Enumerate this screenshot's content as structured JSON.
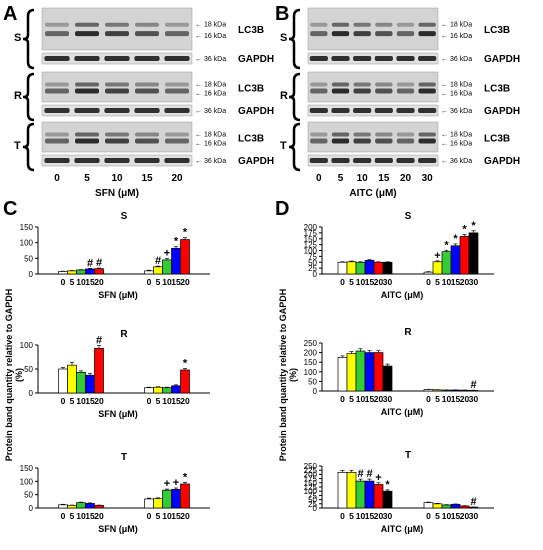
{
  "panels": {
    "A": "A",
    "B": "B",
    "C": "C",
    "D": "D"
  },
  "blot_A": {
    "groups": [
      "S",
      "R",
      "T"
    ],
    "lanes": [
      "0",
      "5",
      "10",
      "15",
      "20"
    ],
    "axis_label": "SFN  (μM)"
  },
  "blot_B": {
    "groups": [
      "S",
      "R",
      "T"
    ],
    "lanes": [
      "0",
      "5",
      "10",
      "15",
      "20",
      "30"
    ],
    "axis_label": "AITC  (μM)"
  },
  "blot_labels": {
    "kda18": "← 18 kDa",
    "kda16": "← 16 kDa",
    "kda36": "← 36 kDa",
    "lc3b": "LC3B",
    "gapdh": "GAPDH"
  },
  "y_axis_label_line1": "Protein band quantity relative to GAPDH",
  "y_axis_label_line2": "(%)",
  "y_axis_label_D_line1": "Protein band quantity relative to GAPDH",
  "colors": {
    "c0": "#ffffff",
    "c5": "#ffff00",
    "c10": "#33cc33",
    "c15": "#0000ff",
    "c20": "#ff0000",
    "c30": "#000000"
  },
  "chart_data": [
    {
      "type": "bar",
      "panel": "C",
      "title": "S",
      "xlabel": "SFN (μM)",
      "categories": [
        "0",
        "5",
        "10",
        "15",
        "20"
      ],
      "ylim": [
        0,
        150
      ],
      "yticks": [
        0,
        50,
        100,
        150
      ],
      "series": [
        {
          "values": [
            8,
            10,
            13,
            16,
            17
          ],
          "errors": [
            1,
            1,
            1,
            2,
            2
          ],
          "marks": [
            "",
            "",
            "",
            "#",
            "#"
          ]
        },
        {
          "values": [
            10,
            23,
            45,
            82,
            110
          ],
          "errors": [
            2,
            2,
            4,
            5,
            6
          ],
          "marks": [
            "",
            "#",
            "+",
            "*",
            "*"
          ]
        }
      ]
    },
    {
      "type": "bar",
      "panel": "C",
      "title": "R",
      "xlabel": "SFN (μM)",
      "categories": [
        "0",
        "5",
        "10",
        "15",
        "20"
      ],
      "ylim": [
        0,
        100
      ],
      "yticks": [
        0,
        50,
        100
      ],
      "series": [
        {
          "values": [
            50,
            58,
            43,
            37,
            93
          ],
          "errors": [
            3,
            6,
            3,
            4,
            6
          ],
          "marks": [
            "",
            "",
            "",
            "",
            "#"
          ]
        },
        {
          "values": [
            11,
            12,
            11,
            15,
            48
          ],
          "errors": [
            1,
            1,
            1,
            2,
            3
          ],
          "marks": [
            "",
            "",
            "",
            "",
            "*"
          ]
        }
      ]
    },
    {
      "type": "bar",
      "panel": "C",
      "title": "T",
      "xlabel": "SFN (μM)",
      "categories": [
        "0",
        "5",
        "10",
        "15",
        "20"
      ],
      "ylim": [
        0,
        150
      ],
      "yticks": [
        0,
        50,
        100,
        150
      ],
      "series": [
        {
          "values": [
            12,
            10,
            20,
            17,
            10
          ],
          "errors": [
            2,
            1,
            2,
            2,
            1
          ],
          "marks": [
            "",
            "",
            "",
            "",
            ""
          ]
        },
        {
          "values": [
            34,
            35,
            67,
            70,
            90
          ],
          "errors": [
            3,
            3,
            4,
            5,
            6
          ],
          "marks": [
            "",
            "",
            "+",
            "+",
            "*"
          ]
        }
      ]
    },
    {
      "type": "bar",
      "panel": "D",
      "title": "S",
      "xlabel": "AITC (μM)",
      "categories": [
        "0",
        "5",
        "10",
        "15",
        "20",
        "30"
      ],
      "ylim": [
        0,
        200
      ],
      "yticks": [
        0,
        25,
        50,
        75,
        100,
        125,
        150,
        175,
        200
      ],
      "series": [
        {
          "values": [
            50,
            52,
            50,
            58,
            50,
            50
          ],
          "errors": [
            2,
            3,
            2,
            3,
            2,
            2
          ],
          "marks": [
            "",
            "",
            "",
            "",
            "",
            ""
          ]
        },
        {
          "values": [
            8,
            52,
            95,
            120,
            160,
            175
          ],
          "errors": [
            2,
            4,
            6,
            8,
            8,
            9
          ],
          "marks": [
            "",
            "+",
            "*",
            "*",
            "*",
            "*"
          ]
        }
      ]
    },
    {
      "type": "bar",
      "panel": "D",
      "title": "R",
      "xlabel": "AITC (μM)",
      "categories": [
        "0",
        "5",
        "10",
        "15",
        "20",
        "30"
      ],
      "ylim": [
        0,
        250
      ],
      "yticks": [
        0,
        50,
        100,
        150,
        200,
        250
      ],
      "series": [
        {
          "values": [
            175,
            195,
            208,
            200,
            200,
            130
          ],
          "errors": [
            8,
            10,
            12,
            10,
            10,
            10
          ],
          "marks": [
            "",
            "",
            "",
            "",
            "",
            ""
          ]
        },
        {
          "values": [
            8,
            6,
            5,
            5,
            4,
            3
          ],
          "errors": [
            1,
            1,
            1,
            1,
            1,
            1
          ],
          "marks": [
            "",
            "",
            "",
            "",
            "",
            "#"
          ]
        }
      ]
    },
    {
      "type": "bar",
      "panel": "D",
      "title": "T",
      "xlabel": "AITC (μM)",
      "categories": [
        "0",
        "5",
        "10",
        "15",
        "20",
        "30"
      ],
      "ylim": [
        0,
        250
      ],
      "yticks": [
        0,
        25,
        50,
        75,
        100,
        125,
        150,
        175,
        200,
        225,
        250
      ],
      "series": [
        {
          "values": [
            212,
            212,
            160,
            160,
            140,
            100
          ],
          "errors": [
            12,
            12,
            12,
            12,
            10,
            8
          ],
          "marks": [
            "",
            "",
            "#",
            "#",
            "+",
            "*"
          ]
        },
        {
          "values": [
            32,
            25,
            18,
            22,
            12,
            5
          ],
          "errors": [
            3,
            3,
            2,
            2,
            2,
            1
          ],
          "marks": [
            "",
            "",
            "",
            "",
            "",
            "#"
          ]
        }
      ]
    }
  ]
}
